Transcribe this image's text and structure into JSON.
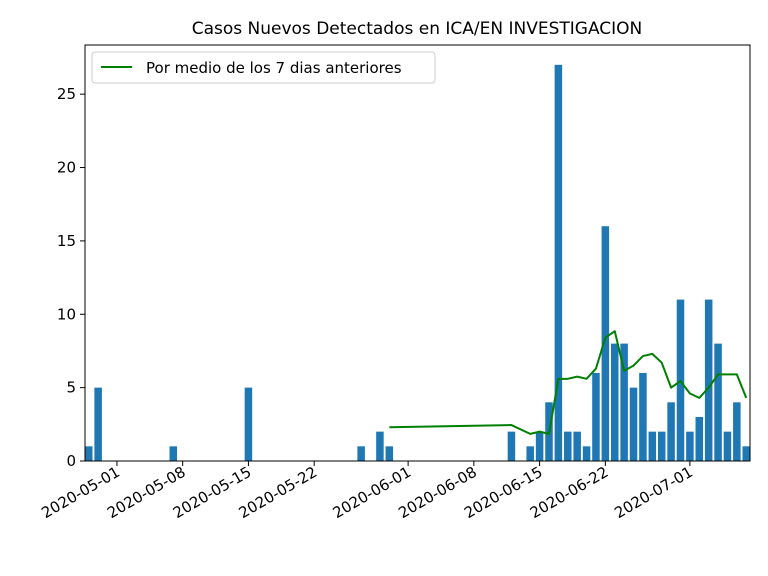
{
  "chart_data": {
    "type": "bar",
    "title": "Casos Nuevos Detectados en ICA/EN INVESTIGACION",
    "xlabel": "",
    "ylabel": "",
    "x_range": [
      "2020-04-28",
      "2020-07-07"
    ],
    "ylim": [
      0,
      28.35
    ],
    "yticks": [
      0,
      5,
      10,
      15,
      20,
      25
    ],
    "xticks": [
      "2020-05-01",
      "2020-05-08",
      "2020-05-15",
      "2020-05-22",
      "2020-06-01",
      "2020-06-08",
      "2020-06-15",
      "2020-06-22",
      "2020-07-01"
    ],
    "grid": false,
    "legend_position": "upper left",
    "bar_color": "#1f77b4",
    "line_color": "#008000",
    "bars": [
      {
        "date": "2020-04-28",
        "value": 1
      },
      {
        "date": "2020-04-29",
        "value": 5
      },
      {
        "date": "2020-05-07",
        "value": 1
      },
      {
        "date": "2020-05-15",
        "value": 5
      },
      {
        "date": "2020-05-27",
        "value": 1
      },
      {
        "date": "2020-05-29",
        "value": 2
      },
      {
        "date": "2020-05-30",
        "value": 1
      },
      {
        "date": "2020-06-12",
        "value": 2
      },
      {
        "date": "2020-06-14",
        "value": 1
      },
      {
        "date": "2020-06-15",
        "value": 2
      },
      {
        "date": "2020-06-16",
        "value": 4
      },
      {
        "date": "2020-06-17",
        "value": 27
      },
      {
        "date": "2020-06-18",
        "value": 2
      },
      {
        "date": "2020-06-19",
        "value": 2
      },
      {
        "date": "2020-06-20",
        "value": 1
      },
      {
        "date": "2020-06-21",
        "value": 6
      },
      {
        "date": "2020-06-22",
        "value": 16
      },
      {
        "date": "2020-06-23",
        "value": 8
      },
      {
        "date": "2020-06-24",
        "value": 8
      },
      {
        "date": "2020-06-25",
        "value": 5
      },
      {
        "date": "2020-06-26",
        "value": 6
      },
      {
        "date": "2020-06-27",
        "value": 2
      },
      {
        "date": "2020-06-28",
        "value": 2
      },
      {
        "date": "2020-06-29",
        "value": 4
      },
      {
        "date": "2020-06-30",
        "value": 11
      },
      {
        "date": "2020-07-01",
        "value": 2
      },
      {
        "date": "2020-07-02",
        "value": 3
      },
      {
        "date": "2020-07-03",
        "value": 11
      },
      {
        "date": "2020-07-04",
        "value": 8
      },
      {
        "date": "2020-07-05",
        "value": 2
      },
      {
        "date": "2020-07-06",
        "value": 4
      },
      {
        "date": "2020-07-07",
        "value": 1
      }
    ],
    "series": [
      {
        "name": "Por medio de los 7 dias anteriores",
        "type": "line",
        "points": [
          {
            "date": "2020-05-30",
            "value": 2.3
          },
          {
            "date": "2020-06-12",
            "value": 2.45
          },
          {
            "date": "2020-06-14",
            "value": 1.85
          },
          {
            "date": "2020-06-15",
            "value": 2.0
          },
          {
            "date": "2020-06-16",
            "value": 1.85
          },
          {
            "date": "2020-06-17",
            "value": 5.6
          },
          {
            "date": "2020-06-18",
            "value": 5.6
          },
          {
            "date": "2020-06-19",
            "value": 5.75
          },
          {
            "date": "2020-06-20",
            "value": 5.6
          },
          {
            "date": "2020-06-21",
            "value": 6.3
          },
          {
            "date": "2020-06-22",
            "value": 8.4
          },
          {
            "date": "2020-06-23",
            "value": 8.85
          },
          {
            "date": "2020-06-24",
            "value": 6.15
          },
          {
            "date": "2020-06-25",
            "value": 6.5
          },
          {
            "date": "2020-06-26",
            "value": 7.15
          },
          {
            "date": "2020-06-27",
            "value": 7.3
          },
          {
            "date": "2020-06-28",
            "value": 6.7
          },
          {
            "date": "2020-06-29",
            "value": 5.0
          },
          {
            "date": "2020-06-30",
            "value": 5.45
          },
          {
            "date": "2020-07-01",
            "value": 4.6
          },
          {
            "date": "2020-07-02",
            "value": 4.3
          },
          {
            "date": "2020-07-03",
            "value": 5.0
          },
          {
            "date": "2020-07-04",
            "value": 5.9
          },
          {
            "date": "2020-07-05",
            "value": 5.9
          },
          {
            "date": "2020-07-06",
            "value": 5.9
          },
          {
            "date": "2020-07-07",
            "value": 4.3
          }
        ]
      }
    ]
  }
}
